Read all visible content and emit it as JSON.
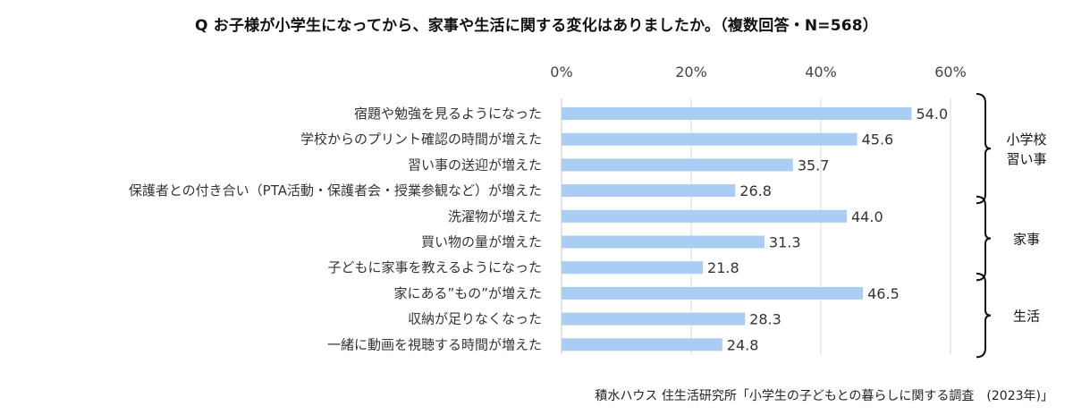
{
  "chart_data": {
    "type": "bar",
    "orientation": "horizontal",
    "title": "Q お子様が小学生になってから、家事や生活に関する変化はありましたか。（複数回答・N=568）",
    "categories": [
      "宿題や勉強を見るようになった",
      "学校からのプリント確認の時間が増えた",
      "習い事の送迎が増えた",
      "保護者との付き合い（PTA活動・保護者会・授業参観など）が増えた",
      "洗濯物が増えた",
      "買い物の量が増えた",
      "子どもに家事を教えるようになった",
      "家にある”もの”が増えた",
      "収納が足りなくなった",
      "一緒に動画を視聴する時間が増えた"
    ],
    "values": [
      54.0,
      45.6,
      35.7,
      26.8,
      44.0,
      31.3,
      21.8,
      46.5,
      28.3,
      24.8
    ],
    "value_labels": [
      "54.0",
      "45.6",
      "35.7",
      "26.8",
      "44.0",
      "31.3",
      "21.8",
      "46.5",
      "28.3",
      "24.8"
    ],
    "xlim": [
      0,
      60
    ],
    "xticks": [
      0,
      20,
      40,
      60
    ],
    "xtick_labels": [
      "0%",
      "20%",
      "40%",
      "60%"
    ],
    "grid": true,
    "bar_color": "#a9cdf3",
    "groups": [
      {
        "label_lines": [
          "小学校",
          "習い事"
        ],
        "start": 0,
        "end": 3
      },
      {
        "label_lines": [
          "家事"
        ],
        "start": 4,
        "end": 6
      },
      {
        "label_lines": [
          "生活"
        ],
        "start": 7,
        "end": 9
      }
    ]
  },
  "source": "積水ハウス 住生活研究所「小学生の子どもとの暮らしに関する調査　(2023年)」"
}
